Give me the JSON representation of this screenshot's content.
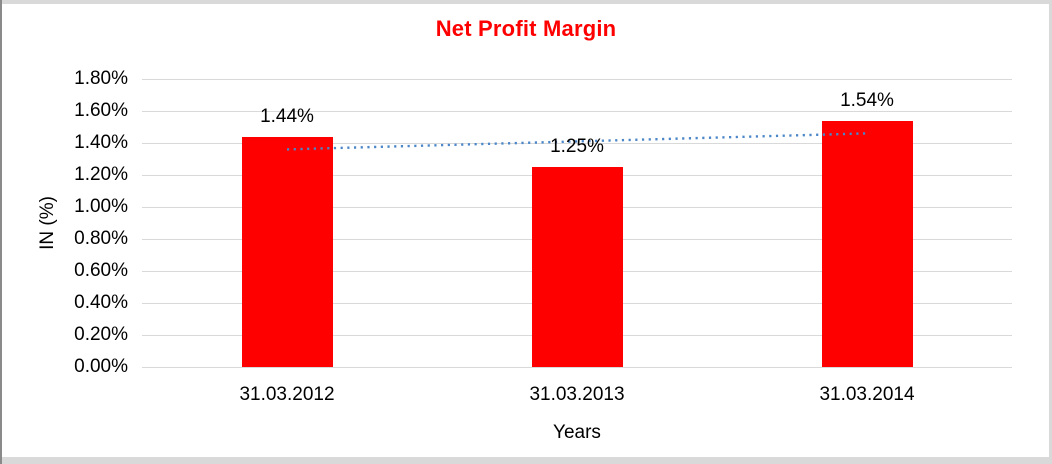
{
  "chart_data": {
    "type": "bar",
    "title": "Net Profit Margin",
    "title_color": "#ff0000",
    "xlabel": "Years",
    "ylabel": "IN (%)",
    "categories": [
      "31.03.2012",
      "31.03.2013",
      "31.03.2014"
    ],
    "values": [
      1.44,
      1.25,
      1.54
    ],
    "data_labels": [
      "1.44%",
      "1.25%",
      "1.54%"
    ],
    "bar_color": "#ff0000",
    "ylim": [
      0,
      1.8
    ],
    "ytick_step": 0.2,
    "ytick_labels": [
      "0.00%",
      "0.20%",
      "0.40%",
      "0.60%",
      "0.80%",
      "1.00%",
      "1.20%",
      "1.40%",
      "1.60%",
      "1.80%"
    ],
    "grid": true,
    "gridline_color": "#d9d9d9",
    "legend": "none",
    "trendline": {
      "type": "linear",
      "style": "dotted",
      "color": "#4a86c8",
      "start_value": 1.36,
      "end_value": 1.46
    }
  }
}
